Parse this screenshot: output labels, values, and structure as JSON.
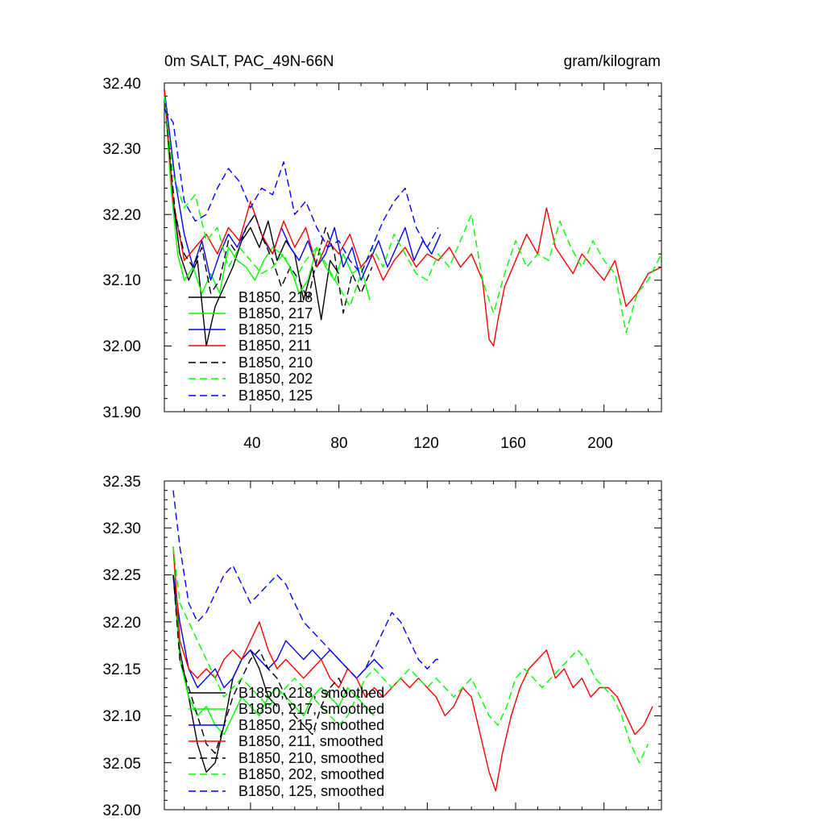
{
  "chart_data": [
    {
      "type": "line",
      "title": "0m SALT, PAC_49N-66N",
      "units": "gram/kilogram",
      "xlabel": "",
      "ylabel": "",
      "xlim": [
        1,
        226
      ],
      "ylim": [
        31.9,
        32.4
      ],
      "x_ticks": [
        "40",
        "80",
        "120",
        "160",
        "200"
      ],
      "y_ticks": [
        "32.40",
        "32.30",
        "32.20",
        "32.10",
        "32.00",
        "31.90"
      ],
      "legend_position": "bottom-left",
      "series": [
        {
          "name": "B1850, 218",
          "color": "#000000",
          "dash": "solid",
          "x": [
            1,
            5,
            8,
            12,
            16,
            20,
            24,
            28,
            32,
            36,
            40,
            44,
            48,
            52,
            56,
            60,
            64,
            68,
            72,
            76,
            80
          ],
          "values": [
            32.39,
            32.22,
            32.14,
            32.1,
            32.13,
            32.0,
            32.06,
            32.09,
            32.12,
            32.16,
            32.18,
            32.15,
            32.19,
            32.13,
            32.16,
            32.14,
            32.07,
            32.12,
            32.04,
            32.13,
            32.11
          ]
        },
        {
          "name": "B1850, 217",
          "color": "#00ff00",
          "dash": "solid",
          "x": [
            1,
            4,
            7,
            10,
            14,
            18,
            22,
            26,
            30,
            34,
            38,
            42,
            46,
            50,
            54,
            58,
            62,
            66,
            70,
            74,
            78,
            82,
            86,
            90,
            94
          ],
          "values": [
            32.39,
            32.24,
            32.14,
            32.1,
            32.12,
            32.08,
            32.11,
            32.08,
            32.15,
            32.13,
            32.12,
            32.1,
            32.13,
            32.15,
            32.14,
            32.12,
            32.08,
            32.1,
            32.15,
            32.12,
            32.1,
            32.14,
            32.11,
            32.12,
            32.07
          ]
        },
        {
          "name": "B1850, 215",
          "color": "#0000ff",
          "dash": "solid",
          "x": [
            1,
            6,
            10,
            14,
            18,
            22,
            26,
            30,
            34,
            38,
            42,
            46,
            50,
            54,
            58,
            62,
            66,
            70,
            74,
            78,
            82,
            86,
            90,
            94,
            98,
            102,
            106,
            110,
            114,
            118,
            122,
            126
          ],
          "values": [
            32.39,
            32.25,
            32.17,
            32.12,
            32.16,
            32.1,
            32.14,
            32.17,
            32.15,
            32.18,
            32.2,
            32.16,
            32.14,
            32.18,
            32.15,
            32.13,
            32.16,
            32.12,
            32.14,
            32.18,
            32.12,
            32.15,
            32.1,
            32.13,
            32.16,
            32.12,
            32.15,
            32.18,
            32.13,
            32.16,
            32.14,
            32.17
          ]
        },
        {
          "name": "B1850, 211",
          "color": "#ff0000",
          "dash": "solid",
          "x": [
            1,
            5,
            10,
            15,
            20,
            25,
            30,
            35,
            40,
            45,
            50,
            55,
            60,
            65,
            70,
            75,
            80,
            85,
            90,
            95,
            100,
            105,
            110,
            115,
            120,
            125,
            130,
            135,
            140,
            145,
            148,
            150,
            152,
            155,
            160,
            165,
            170,
            174,
            178,
            182,
            186,
            190,
            195,
            200,
            205,
            210,
            215,
            220,
            226
          ],
          "values": [
            32.39,
            32.22,
            32.13,
            32.15,
            32.17,
            32.14,
            32.18,
            32.16,
            32.22,
            32.17,
            32.14,
            32.19,
            32.15,
            32.18,
            32.12,
            32.16,
            32.14,
            32.17,
            32.12,
            32.14,
            32.1,
            32.13,
            32.15,
            32.12,
            32.14,
            32.13,
            32.15,
            32.12,
            32.14,
            32.1,
            32.01,
            32.0,
            32.04,
            32.09,
            32.13,
            32.17,
            32.14,
            32.21,
            32.15,
            32.13,
            32.11,
            32.14,
            32.12,
            32.1,
            32.13,
            32.06,
            32.08,
            32.11,
            32.12
          ]
        },
        {
          "name": "B1850, 210",
          "color": "#000000",
          "dash": "dashed",
          "x": [
            1,
            6,
            10,
            14,
            18,
            22,
            26,
            30,
            34,
            38,
            42,
            46,
            50,
            54,
            58,
            62,
            66,
            70,
            74,
            78,
            82,
            86,
            90,
            95
          ],
          "values": [
            32.38,
            32.2,
            32.14,
            32.12,
            32.15,
            32.08,
            32.1,
            32.16,
            32.14,
            32.18,
            32.2,
            32.16,
            32.13,
            32.09,
            32.12,
            32.1,
            32.07,
            32.13,
            32.18,
            32.14,
            32.05,
            32.11,
            32.08,
            32.12
          ]
        },
        {
          "name": "B1850, 202",
          "color": "#00ff00",
          "dash": "dashed",
          "x": [
            1,
            5,
            10,
            15,
            20,
            25,
            30,
            35,
            40,
            45,
            50,
            55,
            60,
            65,
            70,
            75,
            80,
            85,
            90,
            95,
            100,
            105,
            110,
            115,
            120,
            125,
            130,
            135,
            140,
            145,
            150,
            155,
            160,
            165,
            170,
            175,
            180,
            185,
            190,
            195,
            200,
            205,
            210,
            215,
            220,
            226
          ],
          "values": [
            32.38,
            32.26,
            32.21,
            32.23,
            32.16,
            32.18,
            32.12,
            32.15,
            32.13,
            32.11,
            32.12,
            32.14,
            32.1,
            32.13,
            32.15,
            32.12,
            32.09,
            32.06,
            32.11,
            32.15,
            32.12,
            32.17,
            32.14,
            32.11,
            32.1,
            32.14,
            32.12,
            32.16,
            32.2,
            32.1,
            32.05,
            32.11,
            32.16,
            32.12,
            32.14,
            32.13,
            32.19,
            32.15,
            32.12,
            32.16,
            32.13,
            32.11,
            32.02,
            32.08,
            32.1,
            32.14
          ]
        },
        {
          "name": "B1850, 125",
          "color": "#0000ff",
          "dash": "dashed",
          "x": [
            1,
            5,
            10,
            15,
            20,
            25,
            30,
            35,
            40,
            45,
            50,
            55,
            60,
            65,
            70,
            75,
            80,
            85,
            90,
            95,
            100,
            105,
            110,
            115,
            120,
            125
          ],
          "values": [
            32.36,
            32.34,
            32.22,
            32.19,
            32.2,
            32.24,
            32.27,
            32.25,
            32.21,
            32.24,
            32.23,
            32.28,
            32.2,
            32.22,
            32.18,
            32.15,
            32.16,
            32.13,
            32.11,
            32.15,
            32.19,
            32.22,
            32.24,
            32.18,
            32.15,
            32.18
          ]
        }
      ]
    },
    {
      "type": "line",
      "title": "",
      "xlabel": "",
      "ylabel": "",
      "xlim": [
        1,
        226
      ],
      "ylim": [
        32.0,
        32.35
      ],
      "y_ticks": [
        "32.35",
        "32.30",
        "32.25",
        "32.20",
        "32.15",
        "32.10",
        "32.05",
        "32.00"
      ],
      "legend_position": "bottom-left",
      "series": [
        {
          "name": "B1850, 218, smoothed",
          "color": "#000000",
          "dash": "solid",
          "x": [
            5,
            8,
            12,
            16,
            20,
            24,
            28,
            32,
            36,
            40,
            44,
            48,
            52
          ],
          "values": [
            32.25,
            32.17,
            32.12,
            32.07,
            32.04,
            32.05,
            32.09,
            32.14,
            32.16,
            32.17,
            32.15,
            32.12,
            32.11
          ]
        },
        {
          "name": "B1850, 217, smoothed",
          "color": "#00ff00",
          "dash": "solid",
          "x": [
            5,
            8,
            12,
            16,
            20,
            24,
            28,
            32,
            36,
            40,
            44,
            48,
            52,
            56,
            60,
            64,
            68,
            72,
            76,
            80,
            84,
            88,
            92,
            96
          ],
          "values": [
            32.28,
            32.16,
            32.12,
            32.1,
            32.11,
            32.09,
            32.08,
            32.1,
            32.12,
            32.11,
            32.1,
            32.12,
            32.13,
            32.12,
            32.11,
            32.1,
            32.12,
            32.13,
            32.12,
            32.11,
            32.13,
            32.12,
            32.11,
            32.1
          ]
        },
        {
          "name": "B1850, 215, smoothed",
          "color": "#0000ff",
          "dash": "solid",
          "x": [
            5,
            8,
            12,
            16,
            20,
            24,
            28,
            32,
            36,
            40,
            44,
            48,
            52,
            56,
            60,
            64,
            68,
            72,
            76,
            80,
            84,
            88,
            92,
            96,
            100
          ],
          "values": [
            32.25,
            32.2,
            32.15,
            32.13,
            32.14,
            32.15,
            32.13,
            32.14,
            32.16,
            32.17,
            32.16,
            32.15,
            32.16,
            32.18,
            32.17,
            32.16,
            32.17,
            32.16,
            32.17,
            32.16,
            32.15,
            32.14,
            32.15,
            32.16,
            32.15
          ]
        },
        {
          "name": "B1850, 211, smoothed",
          "color": "#ff0000",
          "dash": "solid",
          "x": [
            5,
            8,
            12,
            16,
            20,
            24,
            28,
            32,
            36,
            40,
            44,
            48,
            52,
            56,
            60,
            64,
            68,
            72,
            76,
            80,
            84,
            88,
            92,
            96,
            100,
            104,
            108,
            112,
            116,
            120,
            124,
            128,
            132,
            136,
            140,
            144,
            148,
            151,
            154,
            158,
            162,
            166,
            170,
            174,
            178,
            182,
            186,
            190,
            194,
            198,
            202,
            206,
            210,
            214,
            218,
            222
          ],
          "values": [
            32.28,
            32.18,
            32.15,
            32.14,
            32.15,
            32.14,
            32.16,
            32.17,
            32.16,
            32.18,
            32.2,
            32.17,
            32.15,
            32.16,
            32.15,
            32.14,
            32.15,
            32.16,
            32.14,
            32.13,
            32.15,
            32.14,
            32.12,
            32.13,
            32.12,
            32.13,
            32.14,
            32.13,
            32.14,
            32.13,
            32.12,
            32.1,
            32.11,
            32.13,
            32.12,
            32.08,
            32.04,
            32.02,
            32.06,
            32.1,
            32.13,
            32.15,
            32.16,
            32.17,
            32.14,
            32.15,
            32.13,
            32.14,
            32.12,
            32.13,
            32.13,
            32.12,
            32.1,
            32.08,
            32.09,
            32.11
          ]
        },
        {
          "name": "B1850, 210, smoothed",
          "color": "#000000",
          "dash": "dashed",
          "x": [
            5,
            8,
            12,
            16,
            20,
            24,
            28,
            32,
            36,
            40,
            44,
            48,
            52,
            56,
            60,
            64,
            68,
            72,
            76,
            80,
            84
          ],
          "values": [
            32.25,
            32.16,
            32.13,
            32.1,
            32.07,
            32.06,
            32.09,
            32.12,
            32.14,
            32.16,
            32.17,
            32.15,
            32.14,
            32.12,
            32.1,
            32.09,
            32.08,
            32.11,
            32.13,
            32.14,
            32.12
          ]
        },
        {
          "name": "B1850, 202, smoothed",
          "color": "#00ff00",
          "dash": "dashed",
          "x": [
            5,
            8,
            12,
            16,
            20,
            24,
            28,
            32,
            36,
            40,
            44,
            48,
            52,
            56,
            60,
            64,
            68,
            72,
            76,
            80,
            84,
            88,
            92,
            96,
            100,
            104,
            108,
            112,
            116,
            120,
            124,
            128,
            132,
            136,
            140,
            144,
            148,
            152,
            156,
            160,
            164,
            168,
            172,
            176,
            180,
            184,
            188,
            192,
            196,
            200,
            204,
            208,
            212,
            216,
            220
          ],
          "values": [
            32.28,
            32.22,
            32.2,
            32.18,
            32.16,
            32.14,
            32.12,
            32.13,
            32.14,
            32.13,
            32.12,
            32.11,
            32.12,
            32.13,
            32.14,
            32.13,
            32.12,
            32.11,
            32.1,
            32.09,
            32.1,
            32.12,
            32.14,
            32.15,
            32.14,
            32.13,
            32.14,
            32.15,
            32.14,
            32.13,
            32.14,
            32.13,
            32.12,
            32.13,
            32.14,
            32.12,
            32.1,
            32.09,
            32.11,
            32.14,
            32.15,
            32.14,
            32.13,
            32.14,
            32.15,
            32.16,
            32.17,
            32.16,
            32.14,
            32.13,
            32.12,
            32.1,
            32.07,
            32.05,
            32.07
          ]
        },
        {
          "name": "B1850, 125, smoothed",
          "color": "#0000ff",
          "dash": "dashed",
          "x": [
            5,
            8,
            12,
            16,
            20,
            24,
            28,
            32,
            36,
            40,
            44,
            48,
            52,
            56,
            60,
            64,
            68,
            72,
            76,
            80,
            84,
            88,
            92,
            96,
            100,
            104,
            108,
            112,
            116,
            120,
            124,
            126
          ],
          "values": [
            32.34,
            32.28,
            32.22,
            32.2,
            32.21,
            32.23,
            32.25,
            32.26,
            32.24,
            32.22,
            32.23,
            32.24,
            32.25,
            32.24,
            32.22,
            32.2,
            32.19,
            32.18,
            32.17,
            32.16,
            32.15,
            32.14,
            32.15,
            32.17,
            32.19,
            32.21,
            32.2,
            32.18,
            32.16,
            32.15,
            32.16,
            32.16
          ]
        }
      ]
    }
  ]
}
